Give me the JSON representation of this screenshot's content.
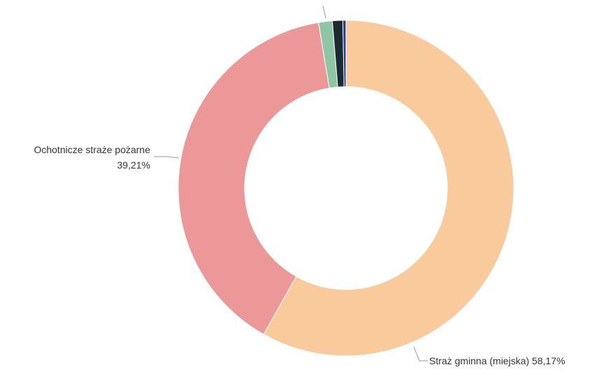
{
  "chart_data": {
    "type": "pie",
    "donut": true,
    "slices": [
      {
        "label": "Straż gminna (miejska)",
        "value": 58.17,
        "value_text": "58,17%",
        "color": "#F9CB9C"
      },
      {
        "label": "Ochotnicze straże pożarne",
        "value": 39.21,
        "value_text": "39,21%",
        "color": "#EC9898"
      },
      {
        "label": "",
        "value": 1.32,
        "value_text": "",
        "color": "#8EC6A5"
      },
      {
        "label": "",
        "value": 1.0,
        "value_text": "",
        "color": "#1C2B2F"
      },
      {
        "label": "",
        "value": 0.3,
        "value_text": "",
        "color": "#1F3F8F"
      }
    ]
  }
}
